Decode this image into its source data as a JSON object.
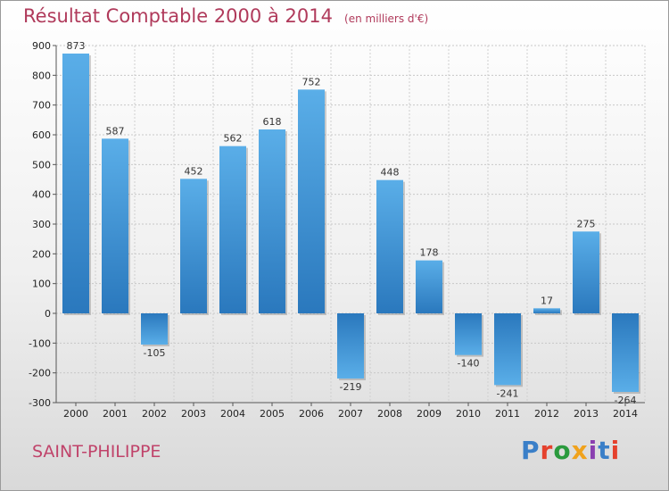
{
  "title": {
    "main": "Résultat Comptable 2000 à 2014",
    "unit": "(en milliers d'€)"
  },
  "footer": {
    "city": "SAINT-PHILIPPE",
    "logo": "Proxiti"
  },
  "chart_data": {
    "type": "bar",
    "title": "Résultat Comptable 2000 à 2014",
    "subtitle": "(en milliers d'€)",
    "categories": [
      "2000",
      "2001",
      "2002",
      "2003",
      "2004",
      "2005",
      "2006",
      "2007",
      "2008",
      "2009",
      "2010",
      "2011",
      "2012",
      "2013",
      "2014"
    ],
    "values": [
      873,
      587,
      -105,
      452,
      562,
      618,
      752,
      -219,
      448,
      178,
      -140,
      -241,
      17,
      275,
      -264
    ],
    "ylim": [
      -300,
      900
    ],
    "yticks": [
      900,
      800,
      700,
      600,
      500,
      400,
      300,
      200,
      100,
      0,
      -100,
      -200,
      -300
    ],
    "grid": true,
    "bar_color": "#3f97da"
  }
}
